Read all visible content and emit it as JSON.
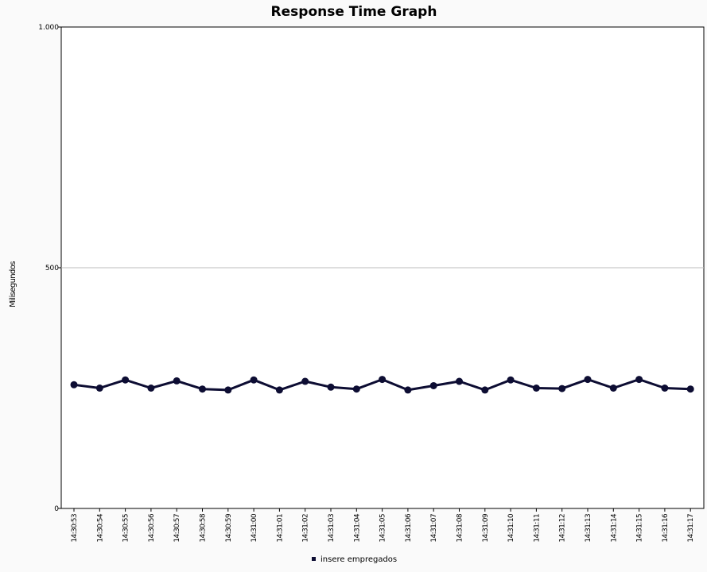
{
  "chart_data": {
    "type": "line",
    "title": "Response Time Graph",
    "ylabel": "Milisegundos",
    "xlabel": "",
    "ylim": [
      0,
      1000
    ],
    "yticks": [
      {
        "value": 0,
        "label": "0"
      },
      {
        "value": 500,
        "label": "500"
      },
      {
        "value": 1000,
        "label": "1.000"
      }
    ],
    "grid": true,
    "legend_position": "bottom",
    "x": [
      "14:30:53",
      "14:30:54",
      "14:30:55",
      "14:30:56",
      "14:30:57",
      "14:30:58",
      "14:30:59",
      "14:31:00",
      "14:31:01",
      "14:31:02",
      "14:31:03",
      "14:31:04",
      "14:31:05",
      "14:31:06",
      "14:31:07",
      "14:31:08",
      "14:31:09",
      "14:31:10",
      "14:31:11",
      "14:31:12",
      "14:31:13",
      "14:31:14",
      "14:31:15",
      "14:31:16",
      "14:31:17"
    ],
    "series": [
      {
        "name": "insere empregados",
        "color": "#0d0d33",
        "values": [
          257,
          250,
          267,
          250,
          265,
          248,
          246,
          267,
          246,
          264,
          252,
          248,
          268,
          246,
          255,
          264,
          246,
          267,
          250,
          249,
          268,
          250,
          268,
          250,
          248
        ]
      }
    ]
  }
}
